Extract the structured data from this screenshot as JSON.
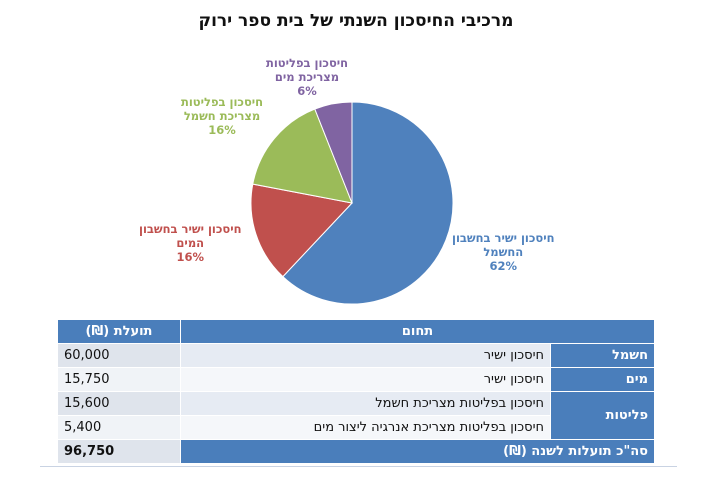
{
  "chart_data": {
    "type": "pie",
    "title": "מרכיבי החיסכון השנתי של בית ספר ירוק",
    "slices": [
      {
        "name_lines": [
          "חיסכון ישיר בחשבון",
          "החשמל"
        ],
        "percent_label": "62%",
        "value": 62,
        "color": "#4f81bd"
      },
      {
        "name_lines": [
          "חיסכון ישיר בחשבון",
          "המים"
        ],
        "percent_label": "16%",
        "value": 16,
        "color": "#c0504d"
      },
      {
        "name_lines": [
          "חיסכון בפליטות",
          "מצריכת חשמל"
        ],
        "percent_label": "16%",
        "value": 16,
        "color": "#9bbb59"
      },
      {
        "name_lines": [
          "חיסכון בפליטות",
          "מצריכת מים"
        ],
        "percent_label": "6%",
        "value": 6,
        "color": "#8064a2"
      }
    ]
  },
  "table": {
    "headers": {
      "domain": "תחום",
      "benefit": "תועלת (₪)"
    },
    "rows": [
      {
        "category": "חשמל",
        "description": "חיסכון ישיר",
        "benefit": "60,000"
      },
      {
        "category": "מים",
        "description": "חיסכון ישיר",
        "benefit": "15,750"
      },
      {
        "category": "פליטות",
        "description": "חיסכון בפליטות מצריכת חשמל",
        "benefit": "15,600"
      },
      {
        "category": "",
        "description": "חיסכון בפליטות מצריכת אנרגיה ליצור מים",
        "benefit": "5,400"
      }
    ],
    "total": {
      "label": "סה\"כ תועלות לשנה (₪)",
      "value": "96,750"
    }
  }
}
